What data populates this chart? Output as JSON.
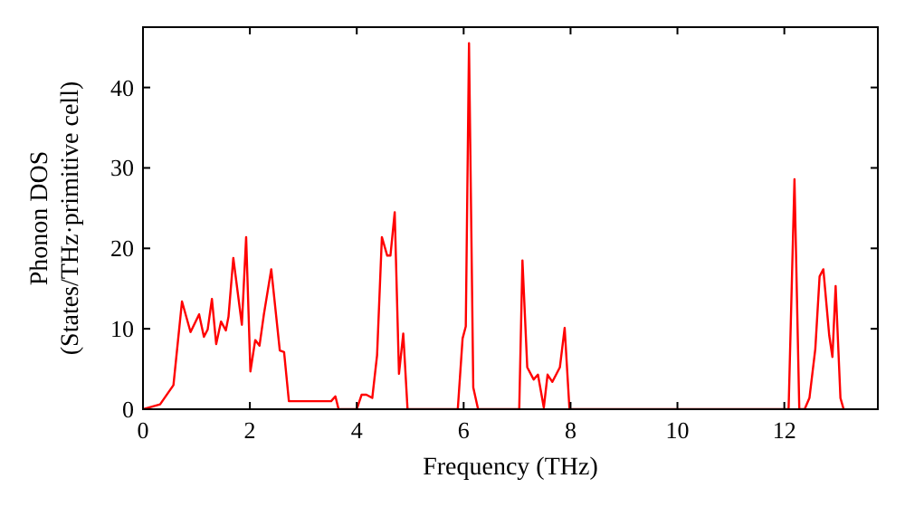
{
  "chart_data": {
    "type": "line",
    "xlabel": "Frequency (THz)",
    "ylabel": "Phonon DOS\n(States/THz·primitive cell)",
    "xlim": [
      0,
      13.75
    ],
    "ylim": [
      0,
      47.5
    ],
    "xticks": [
      0,
      2,
      4,
      6,
      8,
      10,
      12
    ],
    "yticks": [
      0,
      10,
      20,
      30,
      40
    ],
    "grid": false,
    "marker": "none",
    "line_style": "solid",
    "x": [
      0,
      0.32,
      0.57,
      0.73,
      0.89,
      1.05,
      1.14,
      1.21,
      1.29,
      1.37,
      1.46,
      1.55,
      1.6,
      1.69,
      1.85,
      1.93,
      2.01,
      2.1,
      2.18,
      2.26,
      2.4,
      2.56,
      2.64,
      2.73,
      3.52,
      3.6,
      3.66,
      4.0,
      4.09,
      4.18,
      4.29,
      4.38,
      4.47,
      4.57,
      4.63,
      4.71,
      4.79,
      4.87,
      4.95,
      5.89,
      5.98,
      6.04,
      6.1,
      6.18,
      6.27,
      7.04,
      7.1,
      7.19,
      7.31,
      7.39,
      7.5,
      7.57,
      7.66,
      7.8,
      7.89,
      7.98,
      12.08,
      12.19,
      12.28,
      12.38,
      12.47,
      12.58,
      12.66,
      12.73,
      12.84,
      12.9,
      12.96,
      13.05,
      13.11
    ],
    "series": [
      {
        "color": "#ff0000",
        "values": [
          0,
          0.6,
          3,
          13.4,
          9.6,
          11.8,
          9,
          9.9,
          13.7,
          8.1,
          10.9,
          9.8,
          11.5,
          18.8,
          10.5,
          21.4,
          4.7,
          8.6,
          7.9,
          11.7,
          17.4,
          7.3,
          7.1,
          1,
          1,
          1.6,
          0,
          0,
          1.8,
          1.8,
          1.4,
          6.7,
          21.4,
          19.1,
          19.1,
          24.5,
          4.4,
          9.4,
          0,
          0,
          8.8,
          10.3,
          45.5,
          2.7,
          0,
          0,
          18.5,
          5.2,
          3.7,
          4.3,
          0.2,
          4.3,
          3.4,
          5.2,
          10.1,
          0,
          0,
          28.6,
          0,
          0,
          1.4,
          7.5,
          16.5,
          17.4,
          9.2,
          6.5,
          15.3,
          1.4,
          0
        ]
      }
    ]
  }
}
